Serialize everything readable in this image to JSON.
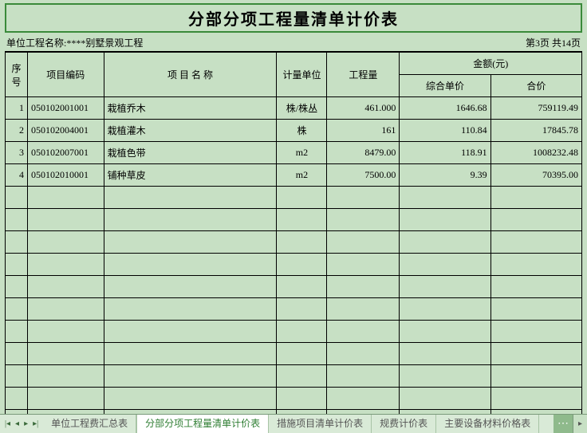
{
  "title": "分部分项工程量清单计价表",
  "meta": {
    "left": "单位工程名称:****别墅景观工程",
    "right": "第3页 共14页"
  },
  "headers": {
    "seq": "序号",
    "code": "项目编码",
    "name": "项 目 名 称",
    "unit": "计量单位",
    "qty": "工程量",
    "amount": "金额(元)",
    "unitprice": "综合单价",
    "total": "合价"
  },
  "rows": [
    {
      "seq": "1",
      "code": "050102001001",
      "name": "栽植乔木",
      "unit": "株/株丛",
      "qty": "461.000",
      "price": "1646.68",
      "total": "759119.49"
    },
    {
      "seq": "2",
      "code": "050102004001",
      "name": "栽植灌木",
      "unit": "株",
      "qty": "161",
      "price": "110.84",
      "total": "17845.78"
    },
    {
      "seq": "3",
      "code": "050102007001",
      "name": "栽植色带",
      "unit": "m2",
      "qty": "8479.00",
      "price": "118.91",
      "total": "1008232.48"
    },
    {
      "seq": "4",
      "code": "050102010001",
      "name": "铺种草皮",
      "unit": "m2",
      "qty": "7500.00",
      "price": "9.39",
      "total": "70395.00"
    }
  ],
  "emptyRowCount": 11,
  "tabs": [
    {
      "label": "单位工程费汇总表",
      "active": false
    },
    {
      "label": "分部分项工程量清单计价表",
      "active": true
    },
    {
      "label": "措施项目清单计价表",
      "active": false
    },
    {
      "label": "规费计价表",
      "active": false
    },
    {
      "label": "主要设备材料价格表",
      "active": false
    }
  ]
}
